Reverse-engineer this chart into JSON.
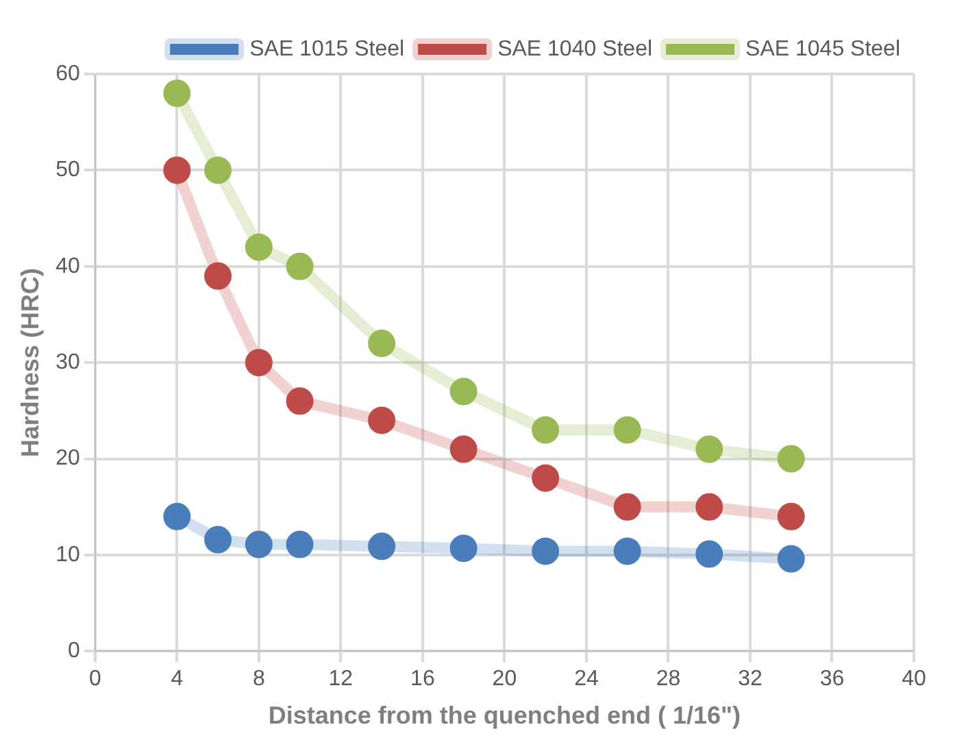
{
  "chart_data": {
    "type": "line",
    "xlabel": "Distance from the quenched end ( 1/16\")",
    "ylabel": "Hardness (HRC)",
    "x": [
      4,
      6,
      8,
      10,
      14,
      18,
      22,
      26,
      30,
      34
    ],
    "xlim": [
      0,
      40
    ],
    "xticks": [
      0,
      4,
      8,
      12,
      16,
      20,
      24,
      28,
      32,
      36,
      40
    ],
    "ylim": [
      0,
      60
    ],
    "yticks": [
      0,
      10,
      20,
      30,
      40,
      50,
      60
    ],
    "grid": true,
    "legend": "top right",
    "marker": "circle",
    "series": [
      {
        "name": "SAE 1015 Steel",
        "color": "#4a7ebb",
        "values": [
          14,
          11.6,
          11.1,
          11.1,
          10.9,
          10.7,
          10.4,
          10.4,
          10.1,
          9.6
        ]
      },
      {
        "name": "SAE 1040 Steel",
        "color": "#be4b48",
        "values": [
          50,
          39,
          30,
          26,
          24,
          21,
          18,
          15,
          15,
          14
        ]
      },
      {
        "name": "SAE 1045 Steel",
        "color": "#98b954",
        "values": [
          58,
          50,
          42,
          40,
          32,
          27,
          23,
          23,
          21,
          20
        ]
      }
    ]
  }
}
